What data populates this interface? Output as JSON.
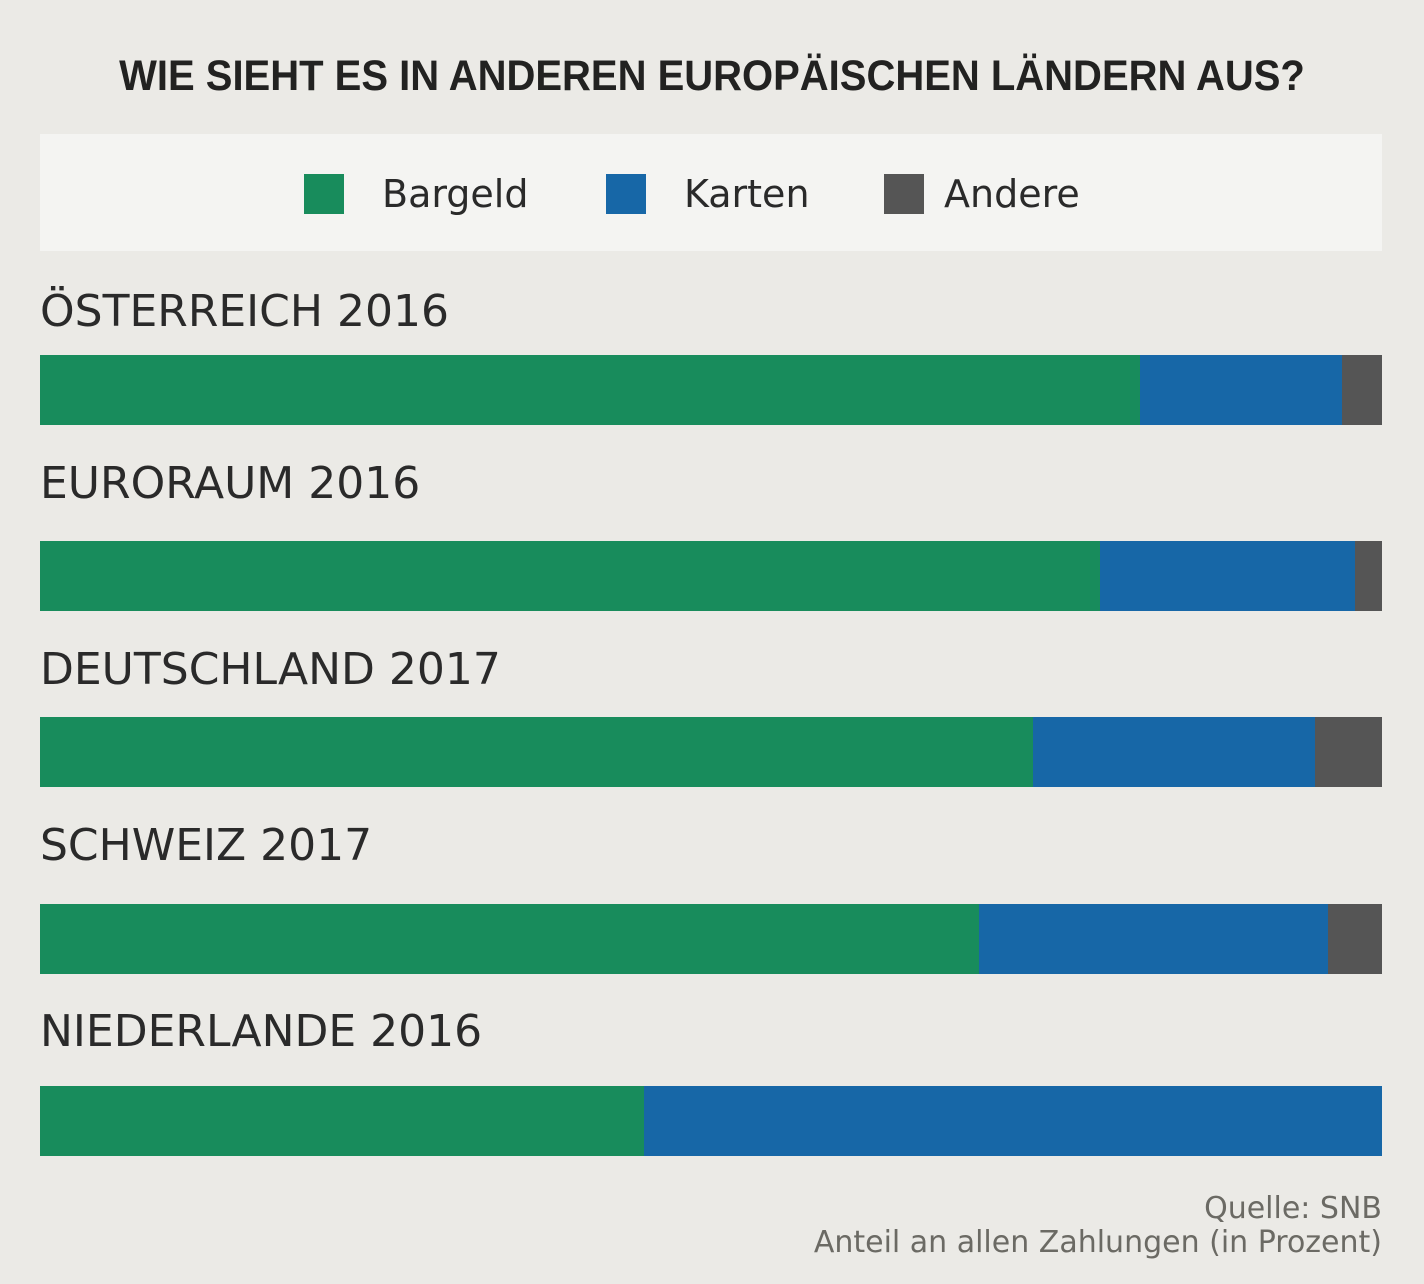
{
  "chart_data": {
    "type": "bar",
    "orientation": "horizontal",
    "stacked": true,
    "title": "WIE SIEHT ES IN ANDEREN EUROPÄISCHEN LÄNDERN AUS?",
    "xlabel": "",
    "ylabel": "",
    "xlim": [
      0,
      100
    ],
    "unit": "Anteil an allen Zahlungen (in Prozent)",
    "legend_position": "top",
    "categories": [
      "ÖSTERREICH 2016",
      "EURORAUM 2016",
      "DEUTSCHLAND 2017",
      "SCHWEIZ 2017",
      "NIEDERLANDE 2016"
    ],
    "series": [
      {
        "name": "Bargeld",
        "color": "#188c5c",
        "values": [
          82,
          79,
          74,
          70,
          45
        ]
      },
      {
        "name": "Karten",
        "color": "#1767a7",
        "values": [
          15,
          19,
          21,
          26,
          55
        ]
      },
      {
        "name": "Andere",
        "color": "#555555",
        "values": [
          3,
          2,
          5,
          4,
          0
        ]
      }
    ]
  },
  "footer": {
    "source": "Quelle: SNB",
    "note": "Anteil an allen Zahlungen (in Prozent)"
  }
}
